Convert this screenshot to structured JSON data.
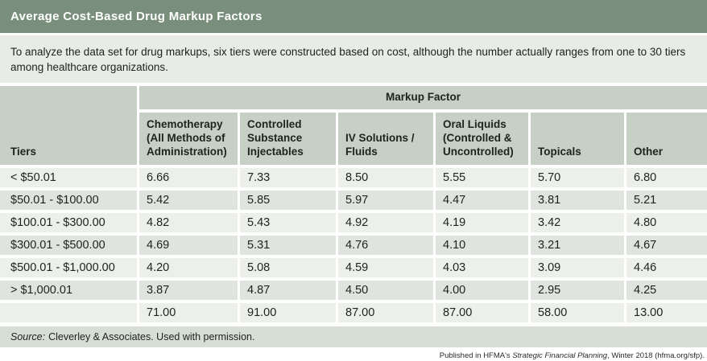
{
  "header": {
    "title": "Average Cost-Based Drug Markup Factors"
  },
  "intro": {
    "text": "To analyze the data set for drug markups, six tiers were constructed based on cost, although the number actually ranges from one to 30 tiers among healthcare organizations."
  },
  "table": {
    "tiers_header": "Tiers",
    "group_header": "Markup Factor",
    "columns": [
      "Chemotherapy (All Methods of Administration)",
      "Controlled Substance Injectables",
      "IV Solutions / Fluids",
      "Oral Liquids (Controlled & Uncontrolled)",
      "Topicals",
      "Other"
    ],
    "rows": [
      {
        "tier": "< $50.01",
        "values": [
          "6.66",
          "7.33",
          "8.50",
          "5.55",
          "5.70",
          "6.80"
        ]
      },
      {
        "tier": "$50.01 - $100.00",
        "values": [
          "5.42",
          "5.85",
          "5.97",
          "4.47",
          "3.81",
          "5.21"
        ]
      },
      {
        "tier": "$100.01 - $300.00",
        "values": [
          "4.82",
          "5.43",
          "4.92",
          "4.19",
          "3.42",
          "4.80"
        ]
      },
      {
        "tier": "$300.01 - $500.00",
        "values": [
          "4.69",
          "5.31",
          "4.76",
          "4.10",
          "3.21",
          "4.67"
        ]
      },
      {
        "tier": "$500.01 - $1,000.00",
        "values": [
          "4.20",
          "5.08",
          "4.59",
          "4.03",
          "3.09",
          "4.46"
        ]
      },
      {
        "tier": "> $1,000.01",
        "values": [
          "3.87",
          "4.87",
          "4.50",
          "4.00",
          "2.95",
          "4.25"
        ]
      },
      {
        "tier": "",
        "values": [
          "71.00",
          "91.00",
          "87.00",
          "87.00",
          "58.00",
          "13.00"
        ]
      }
    ]
  },
  "source": {
    "label": "Source:",
    "text": "Cleverley & Associates. Used with permission."
  },
  "published": {
    "prefix": "Published in HFMA's ",
    "italic": "Strategic Financial Planning",
    "suffix": ", Winter 2018 (hfma.org/sfp)."
  },
  "colors": {
    "title_bar": "#798e7b",
    "intro_bg": "#e9ece6",
    "header_cell": "#c6d0c5",
    "row_light": "#edefeb",
    "row_dark": "#dfe4de",
    "source_bg": "#d7ded6"
  },
  "chart_data": {
    "type": "table",
    "title": "Average Cost-Based Drug Markup Factors",
    "group_header": "Markup Factor",
    "row_header": "Tiers",
    "columns": [
      "Chemotherapy (All Methods of Administration)",
      "Controlled Substance Injectables",
      "IV Solutions / Fluids",
      "Oral Liquids (Controlled & Uncontrolled)",
      "Topicals",
      "Other"
    ],
    "tiers": [
      "< $50.01",
      "$50.01 - $100.00",
      "$100.01 - $300.00",
      "$300.01 - $500.00",
      "$500.01 - $1,000.00",
      "> $1,000.01",
      ""
    ],
    "values": [
      [
        6.66,
        7.33,
        8.5,
        5.55,
        5.7,
        6.8
      ],
      [
        5.42,
        5.85,
        5.97,
        4.47,
        3.81,
        5.21
      ],
      [
        4.82,
        5.43,
        4.92,
        4.19,
        3.42,
        4.8
      ],
      [
        4.69,
        5.31,
        4.76,
        4.1,
        3.21,
        4.67
      ],
      [
        4.2,
        5.08,
        4.59,
        4.03,
        3.09,
        4.46
      ],
      [
        3.87,
        4.87,
        4.5,
        4.0,
        2.95,
        4.25
      ],
      [
        71.0,
        91.0,
        87.0,
        87.0,
        58.0,
        13.0
      ]
    ],
    "source": "Source: Cleverley & Associates. Used with permission.",
    "footnote": "Published in HFMA's Strategic Financial Planning, Winter 2018 (hfma.org/sfp)."
  }
}
